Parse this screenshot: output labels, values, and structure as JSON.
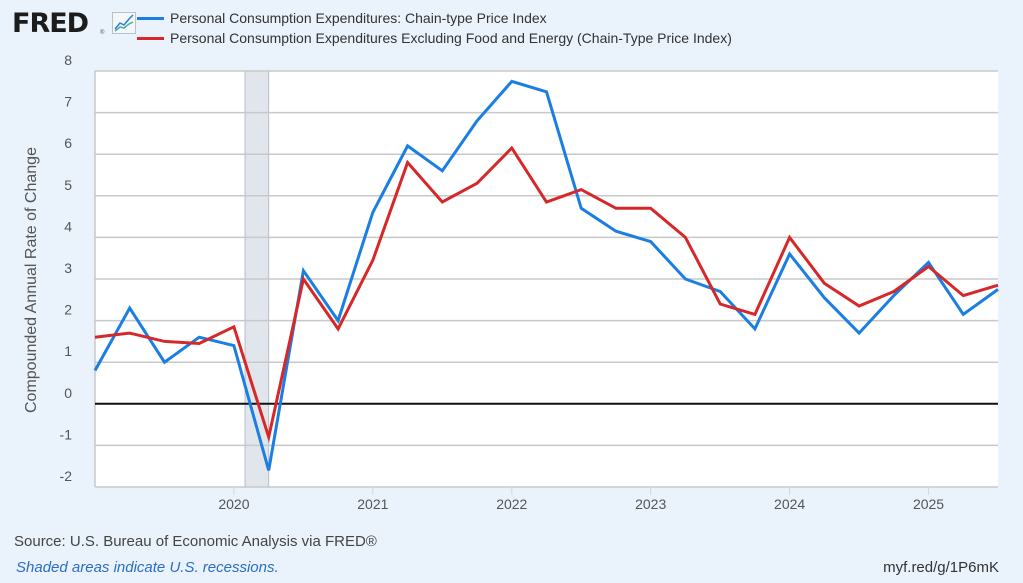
{
  "brand": {
    "logo_text": "FRED",
    "reg_mark": "®",
    "icon": "line-chart-icon"
  },
  "footer": {
    "source": "Source: U.S. Bureau of Economic Analysis via FRED®",
    "note": "Shaded areas indicate U.S. recessions.",
    "url": "myf.red/g/1P6mK"
  },
  "colors": {
    "pce": "#1a7ee2",
    "core": "#d62828",
    "background": "#eaf2fb",
    "recession": "#e1e6ec",
    "grid": "#c8c8c8"
  },
  "chart_data": {
    "type": "line",
    "title": "",
    "xlabel": "",
    "ylabel": "Compounded Annual Rate of Change",
    "ylim": [
      -2,
      8
    ],
    "yticks": [
      -2,
      -1,
      0,
      1,
      2,
      3,
      4,
      5,
      6,
      7,
      8
    ],
    "xlim": [
      2019.0,
      2025.5
    ],
    "xticks": [
      2020,
      2021,
      2022,
      2023,
      2024,
      2025
    ],
    "grid": true,
    "legend_position": "top",
    "recessions": [
      {
        "start": 2020.08,
        "end": 2020.25
      }
    ],
    "x": [
      "2019-Q1",
      "2019-Q2",
      "2019-Q3",
      "2019-Q4",
      "2020-Q1",
      "2020-Q2",
      "2020-Q3",
      "2020-Q4",
      "2021-Q1",
      "2021-Q2",
      "2021-Q3",
      "2021-Q4",
      "2022-Q1",
      "2022-Q2",
      "2022-Q3",
      "2022-Q4",
      "2023-Q1",
      "2023-Q2",
      "2023-Q3",
      "2023-Q4",
      "2024-Q1",
      "2024-Q2",
      "2024-Q3",
      "2024-Q4",
      "2025-Q1",
      "2025-Q2",
      "2025-Q3"
    ],
    "series": [
      {
        "name": "Personal Consumption Expenditures: Chain-type Price Index",
        "color": "#1a7ee2",
        "values": [
          0.8,
          2.3,
          1.0,
          1.6,
          1.4,
          -1.6,
          3.2,
          2.0,
          4.6,
          6.2,
          5.6,
          6.8,
          7.75,
          7.5,
          4.7,
          4.15,
          3.9,
          3.0,
          2.7,
          1.8,
          3.6,
          2.55,
          1.7,
          2.6,
          3.4,
          2.15,
          2.75
        ]
      },
      {
        "name": "Personal Consumption Expenditures Excluding Food and Energy (Chain-Type Price Index)",
        "color": "#d62828",
        "values": [
          1.6,
          1.7,
          1.5,
          1.45,
          1.85,
          -0.8,
          3.0,
          1.8,
          3.45,
          5.8,
          4.85,
          5.3,
          6.15,
          4.85,
          5.15,
          4.7,
          4.7,
          4.0,
          2.4,
          2.15,
          4.0,
          2.9,
          2.35,
          2.7,
          3.3,
          2.6,
          2.85
        ]
      }
    ]
  }
}
